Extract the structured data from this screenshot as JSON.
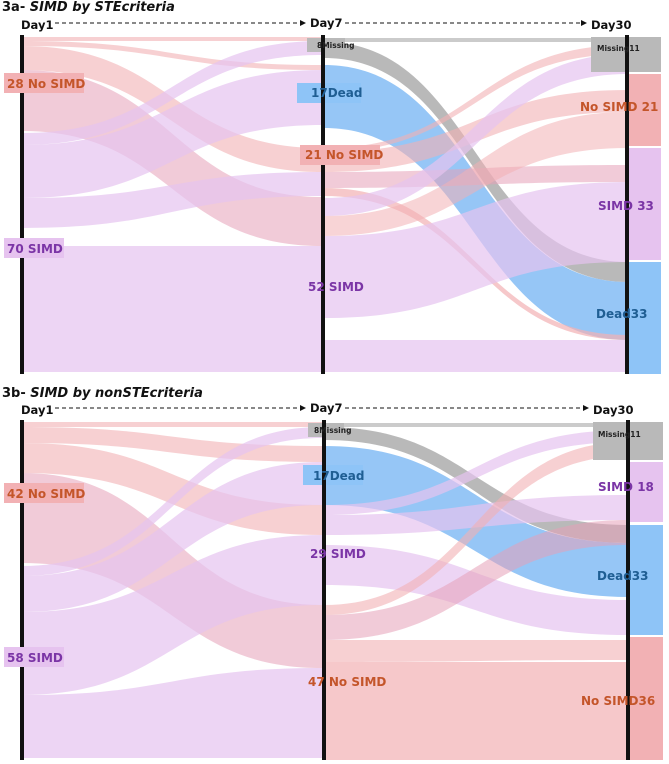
{
  "colors": {
    "simd": "#e6c3ef",
    "no_simd": "#f2b1b4",
    "dead": "#8ec4f7",
    "missing": "#b9b9b9",
    "simd_text": "#7b35a6",
    "no_simd_text": "#c4552a",
    "dead_text": "#1f5e93",
    "missing_text": "#222222"
  },
  "panels": [
    {
      "title_prefix": "3a-",
      "title_italic": " SIMD by ",
      "title_suffix": "STEcriteria",
      "days": [
        "Day1",
        "Day7",
        "Day30"
      ],
      "nodes": [
        {
          "id": "d1_nosimd",
          "text": "28 No SIMD",
          "category": "no_simd"
        },
        {
          "id": "d1_simd",
          "text": "70 SIMD",
          "category": "simd"
        },
        {
          "id": "d7_missing",
          "text": "8Missing",
          "category": "missing"
        },
        {
          "id": "d7_dead",
          "text": "17Dead",
          "category": "dead"
        },
        {
          "id": "d7_nosimd",
          "text": "21 No SIMD",
          "category": "no_simd"
        },
        {
          "id": "d7_simd",
          "text": "52 SIMD",
          "category": "simd"
        },
        {
          "id": "d30_missing",
          "text": "Missing11",
          "category": "missing"
        },
        {
          "id": "d30_nosimd",
          "text": "No SIMD 21",
          "category": "no_simd"
        },
        {
          "id": "d30_simd",
          "text": "SIMD 33",
          "category": "simd"
        },
        {
          "id": "d30_dead",
          "text": "Dead33",
          "category": "dead"
        }
      ]
    },
    {
      "title_prefix": "3b-",
      "title_italic": " SIMD by non",
      "title_suffix": "STEcriteria",
      "days": [
        "Day1",
        "Day7",
        "Day30"
      ],
      "nodes": [
        {
          "id": "d1_nosimd",
          "text": "42 No SIMD",
          "category": "no_simd"
        },
        {
          "id": "d1_simd",
          "text": "58 SIMD",
          "category": "simd"
        },
        {
          "id": "d7_missing",
          "text": "8Missing",
          "category": "missing"
        },
        {
          "id": "d7_dead",
          "text": "17Dead",
          "category": "dead"
        },
        {
          "id": "d7_simd",
          "text": "29 SIMD",
          "category": "simd"
        },
        {
          "id": "d7_nosimd",
          "text": "47 No SIMD",
          "category": "no_simd"
        },
        {
          "id": "d30_missing",
          "text": "Missing11",
          "category": "missing"
        },
        {
          "id": "d30_simd",
          "text": "SIMD 18",
          "category": "simd"
        },
        {
          "id": "d30_dead",
          "text": "Dead33",
          "category": "dead"
        },
        {
          "id": "d30_nosimd",
          "text": "No SIMD36",
          "category": "no_simd"
        }
      ]
    }
  ]
}
